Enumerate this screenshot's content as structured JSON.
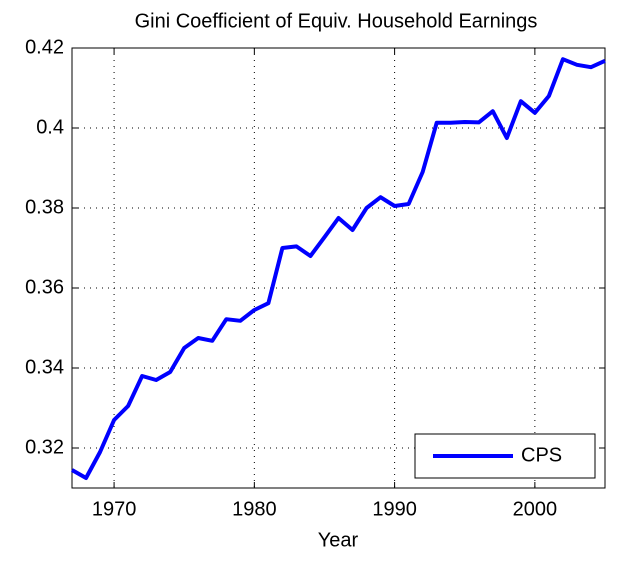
{
  "chart_data": {
    "type": "line",
    "title": "Gini Coefficient of Equiv. Household Earnings",
    "x_label": "Year",
    "x": [
      1967,
      1968,
      1969,
      1970,
      1971,
      1972,
      1973,
      1974,
      1975,
      1976,
      1977,
      1978,
      1979,
      1980,
      1981,
      1982,
      1983,
      1984,
      1985,
      1986,
      1987,
      1988,
      1989,
      1990,
      1991,
      1992,
      1993,
      1994,
      1995,
      1996,
      1997,
      1998,
      1999,
      2000,
      2001,
      2002,
      2003,
      2004,
      2005
    ],
    "series": [
      {
        "name": "CPS",
        "color": "#0000ff",
        "values": [
          0.3145,
          0.3125,
          0.319,
          0.327,
          0.3305,
          0.338,
          0.337,
          0.339,
          0.345,
          0.3475,
          0.3468,
          0.3522,
          0.3518,
          0.3545,
          0.3562,
          0.37,
          0.3704,
          0.368,
          0.3727,
          0.3775,
          0.3745,
          0.38,
          0.3827,
          0.3805,
          0.381,
          0.389,
          0.4013,
          0.4013,
          0.4015,
          0.4014,
          0.4042,
          0.3975,
          0.4067,
          0.4038,
          0.408,
          0.4172,
          0.4158,
          0.4152,
          0.4168
        ]
      }
    ],
    "xlim": [
      1967,
      2005
    ],
    "xticks": [
      1970,
      1980,
      1990,
      2000
    ],
    "ylim": [
      0.31,
      0.42
    ],
    "yticks": [
      0.32,
      0.34,
      0.36,
      0.38,
      {
        "value": 0.4,
        "label": "0.4"
      },
      0.42
    ],
    "grid": true,
    "legend": "lower right"
  }
}
